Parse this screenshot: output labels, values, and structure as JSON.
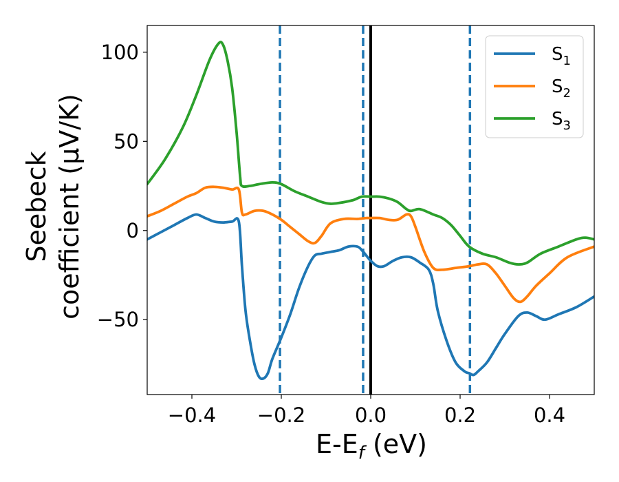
{
  "chart_data": {
    "type": "line",
    "xlabel": "E-E",
    "xlabel_sub": "f",
    "xlabel_unit": " (eV)",
    "ylabel_line1": "Seebeck",
    "ylabel_line2": "coefficient  (μV/K)",
    "xlim": [
      -0.5,
      0.5
    ],
    "ylim": [
      -92,
      115
    ],
    "x_ticks": [
      -0.4,
      -0.2,
      0.0,
      0.2,
      0.4
    ],
    "x_tick_labels": [
      "−0.4",
      "−0.2",
      "0.0",
      "0.2",
      "0.4"
    ],
    "y_ticks": [
      -50,
      0,
      50,
      100
    ],
    "y_tick_labels": [
      "−50",
      "0",
      "50",
      "100"
    ],
    "grid": false,
    "legend_position": "top-right",
    "vertical_lines": [
      {
        "x": -0.203,
        "style": "dashed",
        "color": "#1f77b4"
      },
      {
        "x": -0.017,
        "style": "dashed",
        "color": "#1f77b4"
      },
      {
        "x": 0.0,
        "style": "solid",
        "color": "#000000"
      },
      {
        "x": 0.222,
        "style": "dashed",
        "color": "#1f77b4"
      }
    ],
    "series": [
      {
        "name": "S",
        "sub": "1",
        "color": "#1f77b4",
        "x": [
          -0.5,
          -0.47,
          -0.44,
          -0.41,
          -0.39,
          -0.37,
          -0.35,
          -0.33,
          -0.31,
          -0.295,
          -0.288,
          -0.28,
          -0.27,
          -0.26,
          -0.25,
          -0.24,
          -0.23,
          -0.22,
          -0.2,
          -0.18,
          -0.16,
          -0.14,
          -0.125,
          -0.11,
          -0.09,
          -0.07,
          -0.05,
          -0.03,
          -0.02,
          -0.01,
          0.0,
          0.015,
          0.03,
          0.05,
          0.07,
          0.09,
          0.11,
          0.13,
          0.14,
          0.15,
          0.17,
          0.19,
          0.21,
          0.22,
          0.23,
          0.24,
          0.26,
          0.28,
          0.3,
          0.33,
          0.35,
          0.37,
          0.39,
          0.42,
          0.46,
          0.5
        ],
        "y": [
          -5,
          -1,
          3,
          7,
          9,
          7,
          5,
          4.5,
          5,
          5,
          -20,
          -45,
          -62,
          -75,
          -82,
          -83,
          -80,
          -72,
          -60,
          -47,
          -32,
          -20,
          -14,
          -13,
          -12,
          -11,
          -9,
          -9,
          -11,
          -14,
          -17,
          -20,
          -20,
          -17,
          -15,
          -15,
          -18,
          -22,
          -30,
          -45,
          -62,
          -74,
          -79,
          -80,
          -81,
          -79,
          -74,
          -66,
          -58,
          -48,
          -46,
          -48,
          -50,
          -47,
          -43,
          -37
        ]
      },
      {
        "name": "S",
        "sub": "2",
        "color": "#ff7f0e",
        "x": [
          -0.5,
          -0.47,
          -0.44,
          -0.41,
          -0.39,
          -0.37,
          -0.35,
          -0.33,
          -0.31,
          -0.295,
          -0.288,
          -0.28,
          -0.26,
          -0.24,
          -0.22,
          -0.2,
          -0.18,
          -0.16,
          -0.14,
          -0.125,
          -0.11,
          -0.09,
          -0.06,
          -0.03,
          -0.01,
          0.0,
          0.02,
          0.04,
          0.06,
          0.08,
          0.09,
          0.1,
          0.12,
          0.14,
          0.16,
          0.19,
          0.22,
          0.24,
          0.26,
          0.28,
          0.3,
          0.32,
          0.335,
          0.35,
          0.37,
          0.4,
          0.44,
          0.5
        ],
        "y": [
          8,
          11,
          15,
          19,
          21,
          24,
          24.5,
          24,
          23,
          23,
          10,
          9,
          11,
          11,
          9,
          6,
          2,
          -2,
          -6,
          -7,
          -3,
          4,
          6.5,
          6.5,
          7,
          7,
          7,
          6,
          6,
          9,
          8,
          2,
          -12,
          -21,
          -22,
          -21,
          -20,
          -19,
          -19,
          -24,
          -31,
          -38,
          -40,
          -37,
          -31,
          -24,
          -15,
          -9
        ]
      },
      {
        "name": "S",
        "sub": "3",
        "color": "#2ca02c",
        "x": [
          -0.5,
          -0.46,
          -0.42,
          -0.39,
          -0.36,
          -0.34,
          -0.33,
          -0.32,
          -0.31,
          -0.3,
          -0.292,
          -0.288,
          -0.27,
          -0.25,
          -0.22,
          -0.2,
          -0.17,
          -0.14,
          -0.11,
          -0.09,
          -0.07,
          -0.04,
          -0.02,
          0.0,
          0.02,
          0.04,
          0.06,
          0.08,
          0.09,
          0.11,
          0.14,
          0.16,
          0.18,
          0.2,
          0.22,
          0.25,
          0.28,
          0.31,
          0.33,
          0.35,
          0.38,
          0.42,
          0.46,
          0.48,
          0.5
        ],
        "y": [
          26,
          40,
          58,
          76,
          96,
          105,
          104,
          95,
          80,
          55,
          30,
          25,
          25,
          26,
          27,
          26,
          22,
          19,
          16,
          15,
          15.5,
          17,
          19,
          19,
          19,
          18,
          16,
          12,
          11,
          12,
          9,
          7,
          3,
          -3,
          -9,
          -13,
          -15,
          -18,
          -19,
          -18,
          -13,
          -9,
          -5,
          -4,
          -5
        ]
      }
    ]
  }
}
